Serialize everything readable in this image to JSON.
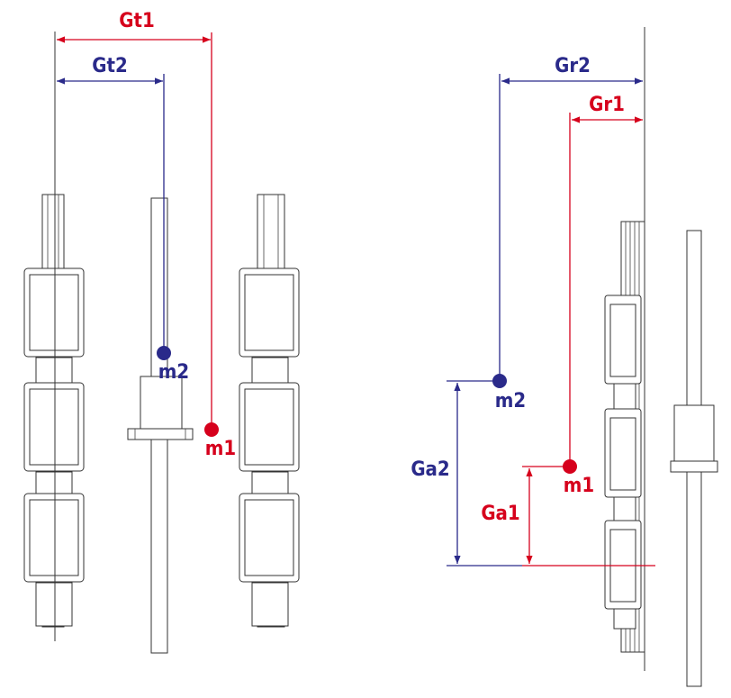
{
  "colors": {
    "red": "#d6001c",
    "blue": "#2a2a8a",
    "line": "#333333"
  },
  "labels": {
    "gt1": "Gt1",
    "gt2": "Gt2",
    "gr1": "Gr1",
    "gr2": "Gr2",
    "ga1": "Ga1",
    "ga2": "Ga2",
    "m1_left": "m1",
    "m2_left": "m2",
    "m1_right": "m1",
    "m2_right": "m2"
  }
}
